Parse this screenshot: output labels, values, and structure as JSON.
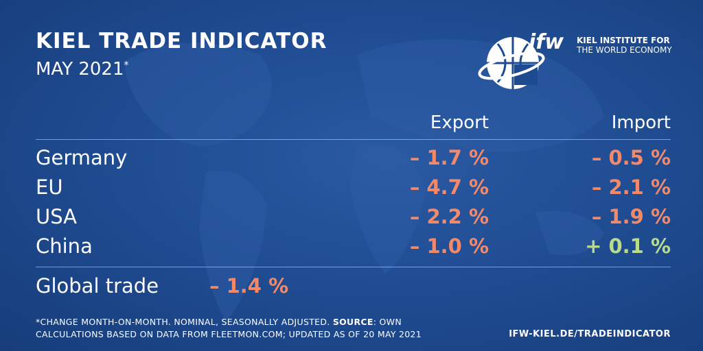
{
  "header": {
    "title": "KIEL TRADE INDICATOR",
    "subtitle": "MAY 2021",
    "subtitle_mark": "*"
  },
  "logo": {
    "mark": "ifw",
    "line1": "KIEL INSTITUTE FOR",
    "line2": "THE WORLD ECONOMY"
  },
  "table": {
    "columns": [
      "Export",
      "Import"
    ],
    "rows": [
      {
        "name": "Germany",
        "export": "– 1.7 %",
        "import": "– 0.5 %",
        "export_color": "#f2896b",
        "import_color": "#f2896b"
      },
      {
        "name": "EU",
        "export": "– 4.7 %",
        "import": "– 2.1 %",
        "export_color": "#f2896b",
        "import_color": "#f2896b"
      },
      {
        "name": "USA",
        "export": "– 2.2 %",
        "import": "– 1.9 %",
        "export_color": "#f2896b",
        "import_color": "#f2896b"
      },
      {
        "name": "China",
        "export": "– 1.0 %",
        "import": "+ 0.1 %",
        "export_color": "#f2896b",
        "import_color": "#b9dc8c"
      }
    ],
    "global": {
      "name": "Global trade",
      "value": "– 1.4 %",
      "color": "#f2896b"
    }
  },
  "footer": {
    "note_start": "*CHANGE MONTH-ON-MONTH. NOMINAL, SEASONALLY ADJUSTED. ",
    "note_bold": "SOURCE",
    "note_end": ": OWN",
    "note_line2": "CALCULATIONS BASED ON DATA FROM FLEETMON.COM; UPDATED AS OF 20 MAY 2021",
    "url": "IFW-KIEL.DE/TRADEINDICATOR"
  }
}
